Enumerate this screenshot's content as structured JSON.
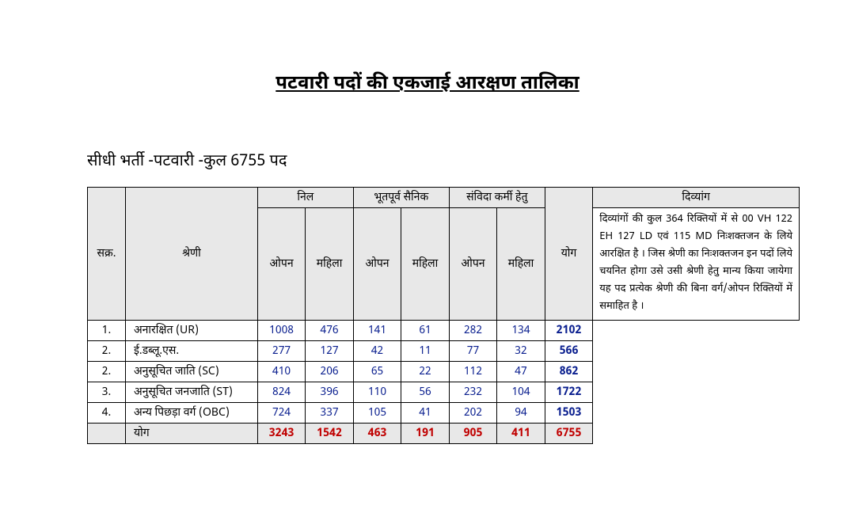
{
  "title": "पटवारी पदों  की  एकजाई आरक्षण तालिका",
  "subtitle": "सीधी भर्ती -पटवारी  -कुल 6755 पद",
  "headers": {
    "sno": "सक्र.",
    "category": "श्रेणी",
    "nil": "निल",
    "ex_service": "भूतपूर्व सैनिक",
    "samvida": "संविदा कर्मी हेतु",
    "open": "ओपन",
    "mahila": "महिला",
    "total": "योग",
    "divyang": "दिव्यांग"
  },
  "rows": [
    {
      "sno": "1.",
      "cat": "अनारक्षित (UR)",
      "nil_o": "1008",
      "nil_m": "476",
      "ex_o": "141",
      "ex_m": "61",
      "sv_o": "282",
      "sv_m": "134",
      "total": "2102"
    },
    {
      "sno": "2.",
      "cat": "ई.डब्लू.एस.",
      "nil_o": "277",
      "nil_m": "127",
      "ex_o": "42",
      "ex_m": "11",
      "sv_o": "77",
      "sv_m": "32",
      "total": "566"
    },
    {
      "sno": "2.",
      "cat": "अनुसूचित जाति (SC)",
      "nil_o": "410",
      "nil_m": "206",
      "ex_o": "65",
      "ex_m": "22",
      "sv_o": "112",
      "sv_m": "47",
      "total": "862"
    },
    {
      "sno": "3.",
      "cat": "अनुसूचित जनजाति (ST)",
      "nil_o": "824",
      "nil_m": "396",
      "ex_o": "110",
      "ex_m": "56",
      "sv_o": "232",
      "sv_m": "104",
      "total": "1722"
    },
    {
      "sno": "4.",
      "cat": "अन्य पिछड़ा वर्ग (OBC)",
      "nil_o": "724",
      "nil_m": "337",
      "ex_o": "105",
      "ex_m": "41",
      "sv_o": "202",
      "sv_m": "94",
      "total": "1503"
    }
  ],
  "footer": {
    "label": "योग",
    "nil_o": "3243",
    "nil_m": "1542",
    "ex_o": "463",
    "ex_m": "191",
    "sv_o": "905",
    "sv_m": "411",
    "total": "6755"
  },
  "divyang_text": "दिव्यांगों की कुल 364 रिक्तियों में से 00 VH  122 EH 127 LD  एवं 115 MD निःशक्तजन के लिये आरक्षित है । जिस श्रेणी का निःशक्तजन इन पदों लिये चयनित होगा उसे उसी श्रेणी हेतु मान्य किया जायेगा यह पद प्रत्येक श्रेणी की बिना वर्ग/ओपन रिक्तियों में समाहित है ।"
}
